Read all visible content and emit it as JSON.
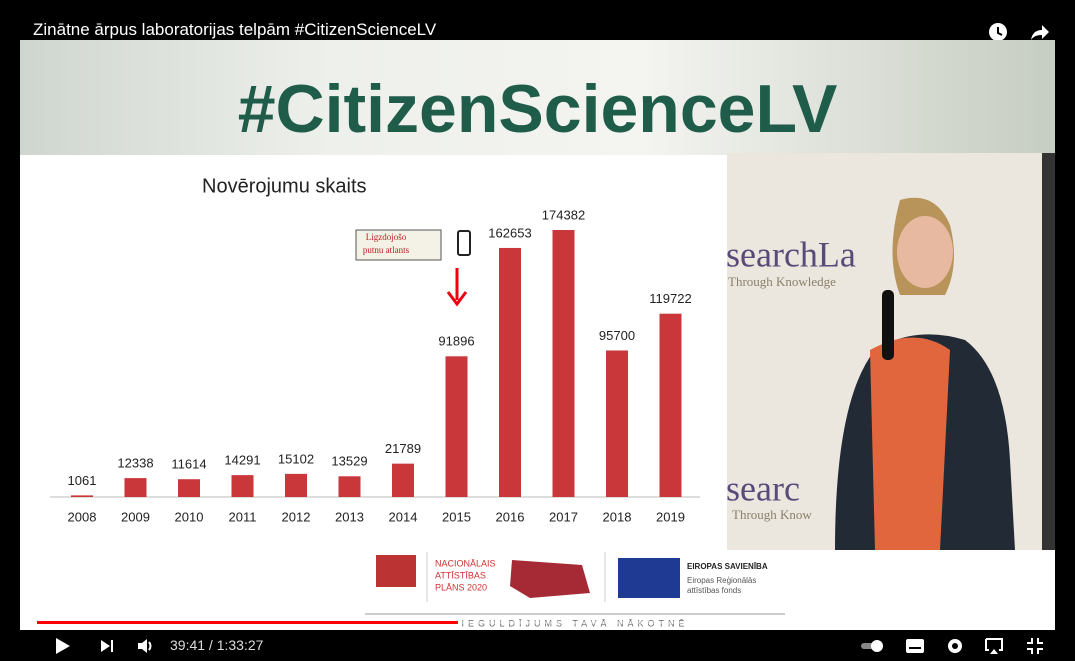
{
  "video": {
    "title": "Zinātne ārpus laboratorijas telpām #CitizenScienceLV",
    "time": "39:41 / 1:33:27"
  },
  "slide": {
    "banner": "#CitizenScienceLV",
    "backdrop": [
      "searchLa",
      "Through Knowledge",
      "searc",
      "Through Know"
    ]
  },
  "logos": {
    "nap": [
      "NACIONĀLAIS",
      "ATTĪSTĪBAS",
      "PLĀNS 2020"
    ],
    "eu": [
      "EIROPAS SAVIENĪBA",
      "Eiropas Reģionālās",
      "attīstības fonds"
    ],
    "slogan": "IEGULDĪJUMS TAVĀ NĀKOTNĒ"
  },
  "chart_data": {
    "type": "bar",
    "title": "Novērojumu skaits",
    "annotation": [
      "Ligzdojošo",
      "putnu atlants"
    ],
    "categories": [
      "2008",
      "2009",
      "2010",
      "2011",
      "2012",
      "2013",
      "2014",
      "2015",
      "2016",
      "2017",
      "2018",
      "2019"
    ],
    "values": [
      1061,
      12338,
      11614,
      14291,
      15102,
      13529,
      21789,
      91896,
      162653,
      174382,
      95700,
      119722
    ],
    "color": "#c9373b"
  }
}
